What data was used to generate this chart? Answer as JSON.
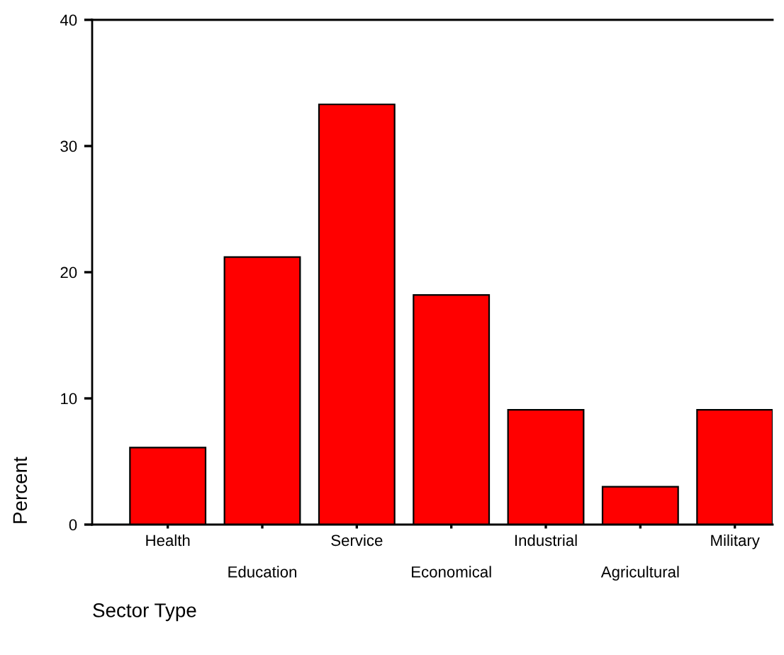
{
  "chart_data": {
    "type": "bar",
    "xlabel": "Sector Type",
    "ylabel": "Percent",
    "categories": [
      "Health",
      "Education",
      "Service",
      "Economical",
      "Industrial",
      "Agricultural",
      "Military"
    ],
    "values": [
      6.1,
      21.2,
      33.3,
      18.2,
      9.1,
      3.0,
      9.1
    ],
    "color": "#ff0000",
    "ylim": [
      0,
      40
    ],
    "yticks": [
      0,
      10,
      20,
      30,
      40
    ],
    "grid": false,
    "legend": false
  }
}
